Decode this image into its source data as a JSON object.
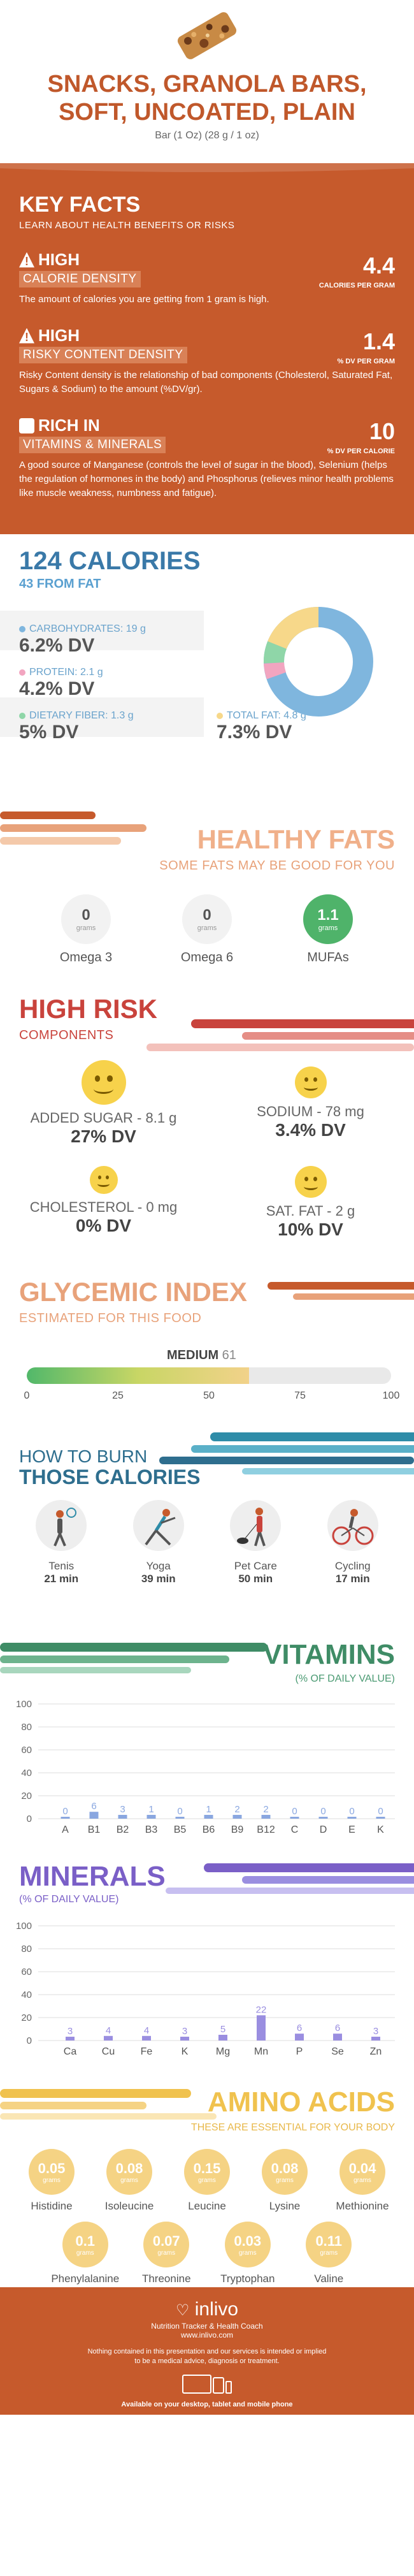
{
  "header": {
    "title_line1": "SNACKS, GRANOLA BARS,",
    "title_line2": "SOFT, UNCOATED, PLAIN",
    "serving": "Bar (1 Oz) (28 g / 1 oz)"
  },
  "key_facts": {
    "title": "KEY FACTS",
    "subtitle": "LEARN ABOUT HEALTH BENEFITS OR RISKS",
    "items": [
      {
        "level": "HIGH",
        "tag": "CALORIE DENSITY",
        "value": "4.4",
        "unit": "CALORIES PER GRAM",
        "desc": "The amount of calories you are getting from 1 gram is high."
      },
      {
        "level": "HIGH",
        "tag": "RISKY CONTENT DENSITY",
        "value": "1.4",
        "unit": "% DV PER GRAM",
        "desc": "Risky Content density is the relationship of bad components (Cholesterol, Saturated Fat, Sugars & Sodium) to the amount (%DV/gr)."
      },
      {
        "level": "RICH  IN",
        "tag": "VITAMINS & MINERALS",
        "value": "10",
        "unit": "% DV PER CALORIE",
        "desc": "A good source of Manganese (controls the level of sugar in the blood), Selenium (helps the regulation of hormones in the body) and Phosphorus (relieves minor health problems like muscle weakness, numbness and fatigue)."
      }
    ]
  },
  "calories": {
    "title": "124 CALORIES",
    "fat": "43 FROM FAT",
    "macros": {
      "carbs_label": "CARBOHYDRATES: 19 g",
      "carbs_dv": "6.2% DV",
      "protein_label": "PROTEIN: 2.1 g",
      "protein_dv": "4.2% DV",
      "fiber_label": "DIETARY FIBER: 1.3 g",
      "fiber_dv": "5% DV",
      "fat_label": "TOTAL FAT: 4.8 g",
      "fat_dv": "7.3% DV"
    },
    "colors": {
      "carbs": "#7fb6de",
      "protein": "#f2a5c0",
      "fiber": "#8fd6a8",
      "fat": "#f7d88a"
    }
  },
  "healthy_fats": {
    "title": "HEALTHY FATS",
    "subtitle": "SOME FATS MAY BE GOOD FOR YOU",
    "unit": "grams",
    "items": [
      {
        "name": "Omega 3",
        "value": "0"
      },
      {
        "name": "Omega 6",
        "value": "0"
      },
      {
        "name": "MUFAs",
        "value": "1.1"
      }
    ]
  },
  "high_risk": {
    "title": "HIGH RISK",
    "subtitle": "COMPONENTS",
    "items": [
      {
        "label": "ADDED SUGAR - 8.1 g",
        "dv": "27% DV"
      },
      {
        "label": "SODIUM - 78 mg",
        "dv": "3.4% DV"
      },
      {
        "label": "CHOLESTEROL - 0 mg",
        "dv": "0% DV"
      },
      {
        "label": "SAT. FAT - 2 g",
        "dv": "10% DV"
      }
    ]
  },
  "glycemic": {
    "title": "GLYCEMIC INDEX",
    "subtitle": "ESTIMATED FOR THIS FOOD",
    "level": "MEDIUM",
    "value": 61,
    "ticks": [
      "0",
      "25",
      "50",
      "75",
      "100"
    ]
  },
  "burn": {
    "title_line1": "HOW TO BURN",
    "title_line2": "THOSE CALORIES",
    "activities": [
      {
        "name": "Tenis",
        "minutes": "21 min"
      },
      {
        "name": "Yoga",
        "minutes": "39 min"
      },
      {
        "name": "Pet Care",
        "minutes": "50 min"
      },
      {
        "name": "Cycling",
        "minutes": "17 min"
      }
    ]
  },
  "vitamins": {
    "title": "VITAMINS",
    "subtitle": "(% OF DAILY VALUE)",
    "color": "#8aa7e0",
    "chart_data": {
      "type": "bar",
      "categories": [
        "A",
        "B1",
        "B2",
        "B3",
        "B5",
        "B6",
        "B9",
        "B12",
        "C",
        "D",
        "E",
        "K"
      ],
      "values": [
        0,
        6,
        3,
        1,
        0,
        1,
        2,
        2,
        0,
        0,
        0,
        0
      ],
      "y_ticks": [
        "0",
        "20",
        "40",
        "60",
        "80",
        "100"
      ],
      "ylim": [
        0,
        100
      ]
    }
  },
  "minerals": {
    "title": "MINERALS",
    "subtitle": "(% OF DAILY VALUE)",
    "color": "#9a8ee0",
    "chart_data": {
      "type": "bar",
      "categories": [
        "Ca",
        "Cu",
        "Fe",
        "K",
        "Mg",
        "Mn",
        "P",
        "Se",
        "Zn"
      ],
      "values": [
        3,
        4,
        4,
        3,
        5,
        22,
        6,
        6,
        3
      ],
      "y_ticks": [
        "0",
        "20",
        "40",
        "60",
        "80",
        "100"
      ],
      "ylim": [
        0,
        100
      ]
    }
  },
  "amino": {
    "title": "AMINO ACIDS",
    "subtitle": "THESE ARE ESSENTIAL FOR YOUR BODY",
    "unit": "grams",
    "row1": [
      {
        "name": "Histidine",
        "value": "0.05"
      },
      {
        "name": "Isoleucine",
        "value": "0.08"
      },
      {
        "name": "Leucine",
        "value": "0.15"
      },
      {
        "name": "Lysine",
        "value": "0.08"
      },
      {
        "name": "Methionine",
        "value": "0.04"
      }
    ],
    "row2": [
      {
        "name": "Phenylalanine",
        "value": "0.1"
      },
      {
        "name": "Threonine",
        "value": "0.07"
      },
      {
        "name": "Tryptophan",
        "value": "0.03"
      },
      {
        "name": "Valine",
        "value": "0.11"
      }
    ]
  },
  "footer": {
    "logo": "inlivo",
    "tagline": "Nutrition Tracker & Health Coach",
    "site": "www.inlivo.com",
    "disclaimer_line1": "Nothing contained in this presentation and our services is intended or implied",
    "disclaimer_line2": "to be a medical advice, diagnosis or treatment.",
    "available": "Available on your desktop, tablet and mobile phone"
  }
}
